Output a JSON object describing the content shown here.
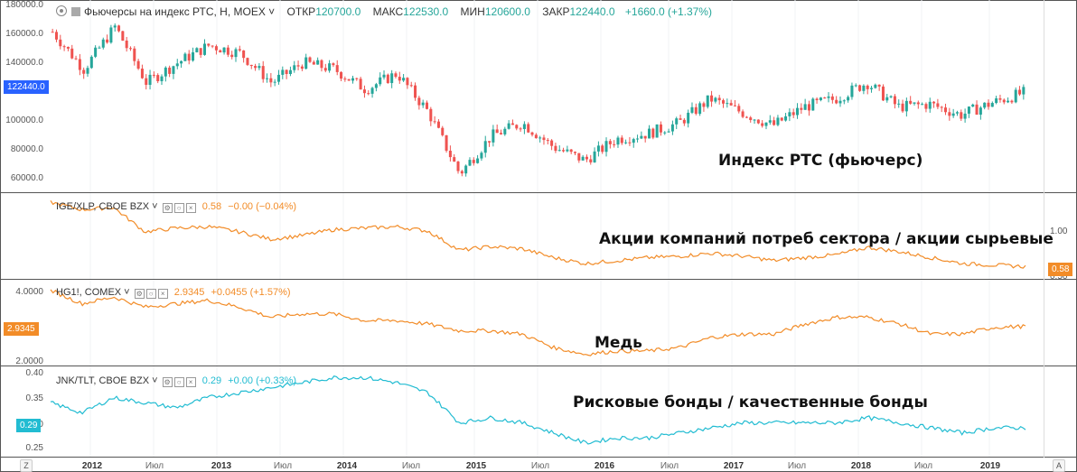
{
  "header": {
    "title": "Фьючерсы на индекс РТС, Н, MOEX",
    "open_label": "ОТКР",
    "open": "120700.0",
    "high_label": "МАКС",
    "high": "122530.0",
    "low_label": "МИН",
    "low": "120600.0",
    "close_label": "ЗАКР",
    "close": "122440.0",
    "change": "+1660.0 (+1.37%)"
  },
  "colors": {
    "up": "#26a69a",
    "down": "#ef5350",
    "orange": "#f28c28",
    "cyan": "#22bcd2",
    "price_badge": "#2962ff"
  },
  "icons": [
    "eye-icon",
    "chevron-down-icon",
    "settings-icon",
    "hide-icon",
    "close-icon"
  ],
  "dates": [
    "2012",
    "Июл",
    "2013",
    "Июл",
    "2014",
    "Июл",
    "2015",
    "Июл",
    "2016",
    "Июл",
    "2017",
    "Июл",
    "2018",
    "Июл",
    "2019"
  ],
  "corner_left": "Z",
  "corner_right": "A",
  "panes": [
    {
      "id": "rts",
      "annotation": "Индекс РТС (фьючерс)",
      "axis_ticks": [
        "180000.0",
        "160000.0",
        "140000.0",
        "120000.0",
        "100000.0",
        "80000.0",
        "60000.0"
      ],
      "axis_side": "left",
      "last_value": "122440.0",
      "chart_data": {
        "type": "candlestick",
        "ylim": [
          53000,
          185000
        ],
        "x": [
          "2011-09",
          "2011-12",
          "2012-03",
          "2012-06",
          "2012-09",
          "2012-12",
          "2013-03",
          "2013-06",
          "2013-09",
          "2013-12",
          "2014-03",
          "2014-06",
          "2014-09",
          "2014-12",
          "2015-03",
          "2015-06",
          "2015-09",
          "2015-12",
          "2016-03",
          "2016-06",
          "2016-09",
          "2016-12",
          "2017-03",
          "2017-06",
          "2017-09",
          "2017-12",
          "2018-03",
          "2018-06",
          "2018-09",
          "2018-12",
          "2019-03",
          "2019-06"
        ],
        "values": [
          168000,
          140000,
          172000,
          130000,
          145000,
          158000,
          152000,
          130000,
          145000,
          140000,
          125000,
          137000,
          108000,
          62000,
          90000,
          100000,
          82000,
          72000,
          88000,
          92000,
          100000,
          118000,
          108000,
          98000,
          112000,
          118000,
          130000,
          112000,
          114000,
          106000,
          115000,
          122440
        ]
      }
    },
    {
      "id": "ige",
      "legend_symbol": "IGE/XLP, CBOE BZX",
      "legend_value": "0.58",
      "legend_change": "−0.00 (−0.04%)",
      "annotation": "Акции компаний потреб сектора / акции сырьевые",
      "axis_ticks": [
        "1.00",
        "0.50"
      ],
      "axis_side": "right",
      "last_value": "0.58",
      "chart_data": {
        "type": "line",
        "series": [
          {
            "name": "IGE/XLP, CBOE BZX",
            "values": [
              1.45,
              1.35,
              1.38,
              1.05,
              1.1,
              1.12,
              1.05,
              0.95,
              1.0,
              1.08,
              1.1,
              1.12,
              1.06,
              0.8,
              0.85,
              0.82,
              0.7,
              0.62,
              0.66,
              0.7,
              0.72,
              0.76,
              0.72,
              0.66,
              0.7,
              0.74,
              0.84,
              0.78,
              0.7,
              0.62,
              0.6,
              0.58
            ]
          }
        ],
        "ylim": [
          0.45,
          1.5
        ]
      }
    },
    {
      "id": "hg",
      "legend_symbol": "HG1!, COMEX",
      "legend_value": "2.9345",
      "legend_change": "+0.0455 (+1.57%)",
      "annotation": "Медь",
      "axis_ticks": [
        "4.0000",
        "2.0000"
      ],
      "axis_side": "left",
      "last_value": "2.9345",
      "chart_data": {
        "type": "line",
        "series": [
          {
            "name": "HG1!, COMEX",
            "values": [
              4.0,
              3.6,
              3.8,
              3.5,
              3.6,
              3.7,
              3.5,
              3.2,
              3.3,
              3.3,
              3.1,
              3.1,
              3.0,
              2.8,
              2.8,
              2.7,
              2.3,
              2.1,
              2.2,
              2.2,
              2.3,
              2.6,
              2.7,
              2.7,
              3.0,
              3.2,
              3.2,
              3.0,
              2.7,
              2.7,
              2.9,
              2.93
            ]
          }
        ],
        "ylim": [
          1.85,
          4.15
        ]
      }
    },
    {
      "id": "jnk",
      "legend_symbol": "JNK/TLT, CBOE BZX",
      "legend_value": "0.29",
      "legend_change": "+0.00 (+0.33%)",
      "annotation": "Рисковые бонды / качественные бонды",
      "axis_ticks": [
        "0.40",
        "0.35",
        "0.30",
        "0.25"
      ],
      "axis_side": "left",
      "last_value": "0.29",
      "chart_data": {
        "type": "line",
        "series": [
          {
            "name": "JNK/TLT, CBOE BZX",
            "values": [
              0.34,
              0.32,
              0.35,
              0.34,
              0.33,
              0.35,
              0.36,
              0.37,
              0.38,
              0.39,
              0.39,
              0.38,
              0.36,
              0.3,
              0.31,
              0.3,
              0.28,
              0.26,
              0.27,
              0.27,
              0.28,
              0.29,
              0.3,
              0.3,
              0.3,
              0.3,
              0.31,
              0.3,
              0.29,
              0.28,
              0.29,
              0.29
            ]
          }
        ],
        "ylim": [
          0.24,
          0.405
        ]
      }
    }
  ]
}
